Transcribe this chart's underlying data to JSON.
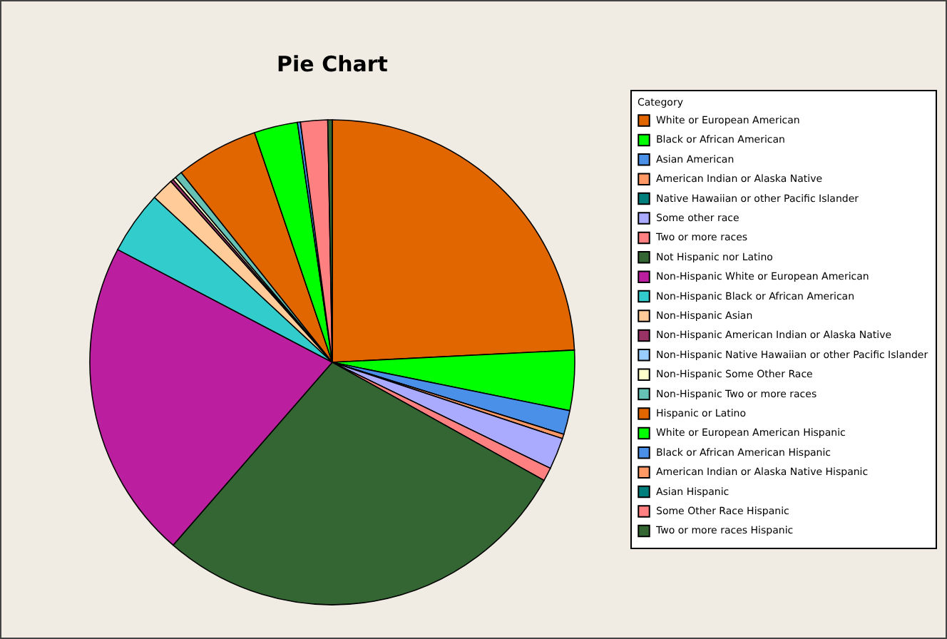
{
  "chart_data": {
    "type": "pie",
    "title": "Pie Chart",
    "legend_title": "Category",
    "legend": "right",
    "categories": [
      "White or European American",
      "Black or African American",
      "Asian American",
      "American Indian or Alaska Native",
      "Native Hawaiian or other Pacific Islander",
      "Some other race",
      "Two or more races",
      "Not Hispanic nor Latino",
      "Non-Hispanic White or European American",
      "Non-Hispanic Black or African American",
      "Non-Hispanic Asian",
      "Non-Hispanic American Indian or Alaska Native",
      "Non-Hispanic Native Hawaiian or other Pacific Islander",
      "Non-Hispanic Some Other Race",
      "Non-Hispanic Two or more races",
      "Hispanic or Latino",
      "White or European American Hispanic",
      "Black or African American Hispanic",
      "American Indian or Alaska Native Hispanic",
      "Asian Hispanic",
      "Some Other Race Hispanic",
      "Two or more races Hispanic"
    ],
    "values": [
      24.2,
      4.0,
      1.6,
      0.3,
      null,
      2.1,
      0.9,
      28.3,
      21.3,
      4.2,
      1.5,
      0.2,
      null,
      0.2,
      0.5,
      5.5,
      2.9,
      0.2,
      null,
      null,
      1.8,
      0.3
    ],
    "colors": [
      "#e26600",
      "#00ff00",
      "#4a90e8",
      "#ff9966",
      "#007f7f",
      "#aaaaff",
      "#ff8080",
      "#336633",
      "#bb1e9e",
      "#33cccc",
      "#ffcc99",
      "#993366",
      "#99ccff",
      "#ffffcc",
      "#66c2b4",
      "#e26600",
      "#00ff00",
      "#4a90e8",
      "#ff9966",
      "#007f7f",
      "#ff8080",
      "#336633"
    ]
  }
}
